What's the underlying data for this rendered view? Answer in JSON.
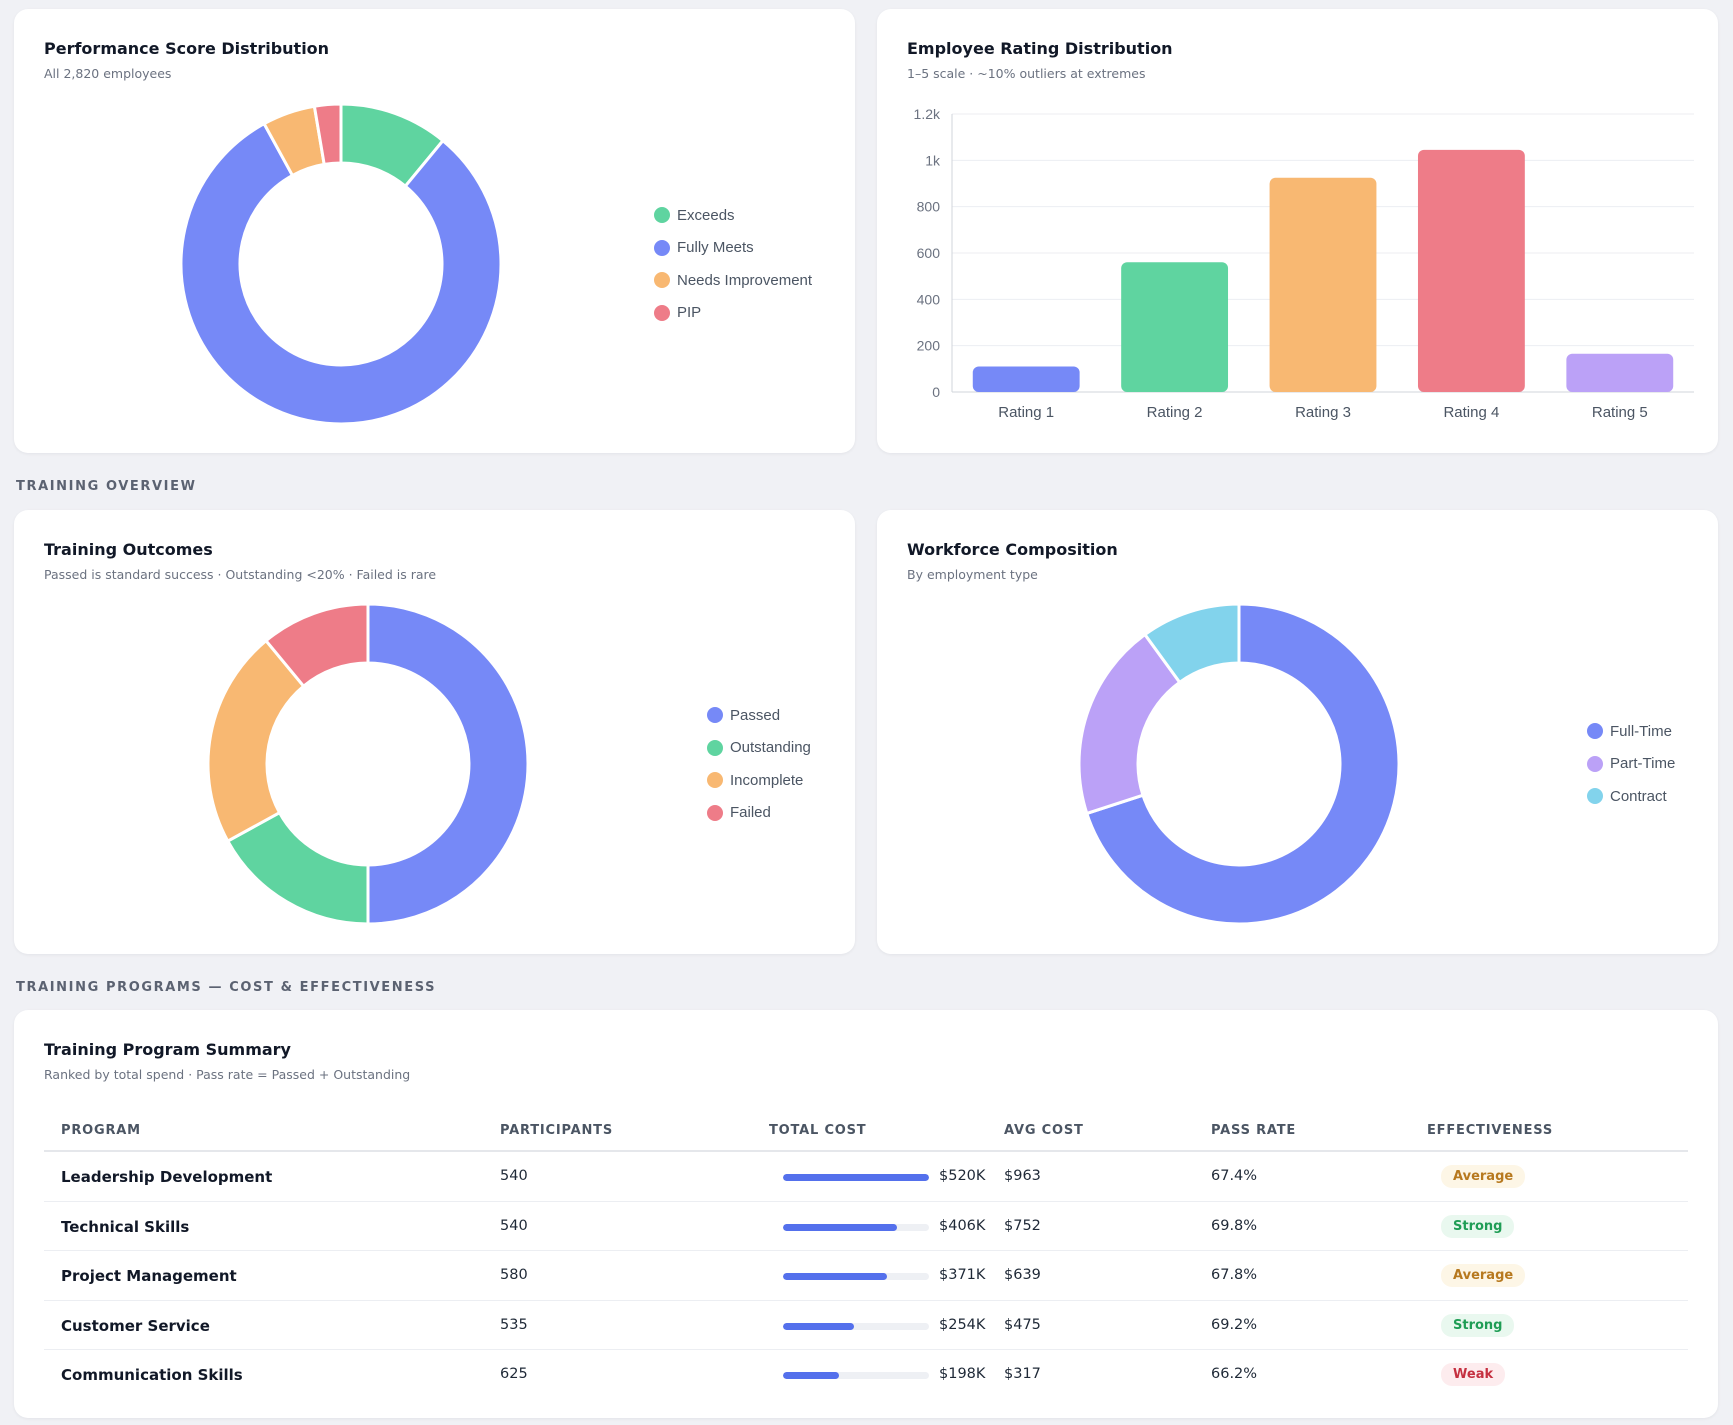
{
  "sections": {
    "training_overview": "TRAINING OVERVIEW",
    "training_programs": "TRAINING PROGRAMS — COST & EFFECTIVENESS"
  },
  "colors": {
    "green": "#5fd4a0",
    "blue": "#7689f7",
    "orange": "#f8b872",
    "red": "#ee7c88",
    "purple": "#bba1f7",
    "cyan": "#82d3ec",
    "table_bar": "#5470ec"
  },
  "performance": {
    "title": "Performance Score Distribution",
    "subtitle": "All 2,820 employees",
    "legend": [
      "Exceeds",
      "Fully Meets",
      "Needs Improvement",
      "PIP"
    ]
  },
  "rating": {
    "title": "Employee Rating Distribution",
    "subtitle": "1–5 scale · ~10% outliers at extremes",
    "y_ticks": [
      "0",
      "200",
      "400",
      "600",
      "800",
      "1k",
      "1.2k"
    ]
  },
  "outcomes": {
    "title": "Training Outcomes",
    "subtitle": "Passed is standard success · Outstanding <20% · Failed is rare",
    "legend": [
      "Passed",
      "Outstanding",
      "Incomplete",
      "Failed"
    ]
  },
  "workforce": {
    "title": "Workforce Composition",
    "subtitle": "By employment type",
    "legend": [
      "Full-Time",
      "Part-Time",
      "Contract"
    ]
  },
  "programs": {
    "title": "Training Program Summary",
    "subtitle": "Ranked by total spend · Pass rate = Passed + Outstanding",
    "headers": [
      "PROGRAM",
      "PARTICIPANTS",
      "TOTAL COST",
      "AVG COST",
      "PASS RATE",
      "EFFECTIVENESS"
    ],
    "rows": [
      {
        "program": "Leadership Development",
        "participants": "540",
        "cost_fraction": 1.0,
        "total_cost": "$520K",
        "avg_cost": "$963",
        "pass_rate": "67.4%",
        "effectiveness": "Average",
        "eff_class": "average"
      },
      {
        "program": "Technical Skills",
        "participants": "540",
        "cost_fraction": 0.78,
        "total_cost": "$406K",
        "avg_cost": "$752",
        "pass_rate": "69.8%",
        "effectiveness": "Strong",
        "eff_class": "strong"
      },
      {
        "program": "Project Management",
        "participants": "580",
        "cost_fraction": 0.713,
        "total_cost": "$371K",
        "avg_cost": "$639",
        "pass_rate": "67.8%",
        "effectiveness": "Average",
        "eff_class": "average"
      },
      {
        "program": "Customer Service",
        "participants": "535",
        "cost_fraction": 0.488,
        "total_cost": "$254K",
        "avg_cost": "$475",
        "pass_rate": "69.2%",
        "effectiveness": "Strong",
        "eff_class": "strong"
      },
      {
        "program": "Communication Skills",
        "participants": "625",
        "cost_fraction": 0.381,
        "total_cost": "$198K",
        "avg_cost": "$317",
        "pass_rate": "66.2%",
        "effectiveness": "Weak",
        "eff_class": "weak"
      }
    ]
  },
  "chart_data": [
    {
      "type": "pie",
      "title": "Performance Score Distribution",
      "labels": [
        "Exceeds",
        "Fully Meets",
        "Needs Improvement",
        "PIP"
      ],
      "values": [
        310,
        2285,
        150,
        75
      ],
      "colors": [
        "#5fd4a0",
        "#7689f7",
        "#f8b872",
        "#ee7c88"
      ],
      "donut": true
    },
    {
      "type": "bar",
      "title": "Employee Rating Distribution",
      "categories": [
        "Rating 1",
        "Rating 2",
        "Rating 3",
        "Rating 4",
        "Rating 5"
      ],
      "values": [
        110,
        560,
        925,
        1045,
        165
      ],
      "colors": [
        "#7689f7",
        "#5fd4a0",
        "#f8b872",
        "#ee7c88",
        "#bba1f7"
      ],
      "ylim": [
        0,
        1200
      ],
      "grid": true
    },
    {
      "type": "pie",
      "title": "Training Outcomes",
      "labels": [
        "Passed",
        "Outstanding",
        "Incomplete",
        "Failed"
      ],
      "values": [
        50,
        17,
        22,
        11
      ],
      "colors": [
        "#7689f7",
        "#5fd4a0",
        "#f8b872",
        "#ee7c88"
      ],
      "donut": true
    },
    {
      "type": "pie",
      "title": "Workforce Composition",
      "labels": [
        "Full-Time",
        "Part-Time",
        "Contract"
      ],
      "values": [
        70,
        20,
        10
      ],
      "colors": [
        "#7689f7",
        "#bba1f7",
        "#82d3ec"
      ],
      "donut": true
    }
  ]
}
